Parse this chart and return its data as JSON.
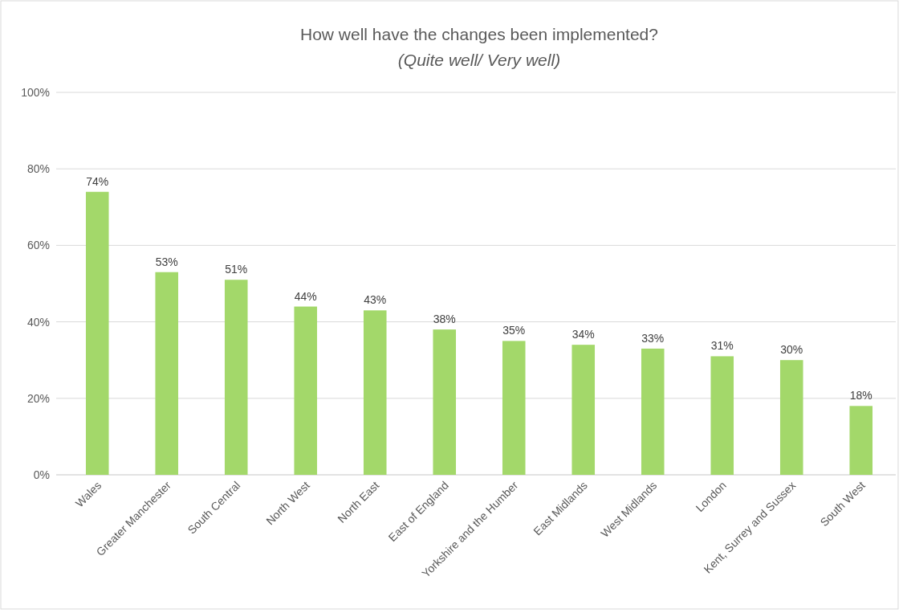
{
  "chart_data": {
    "type": "bar",
    "title": "How well have the changes been implemented?",
    "subtitle": "(Quite well/ Very well)",
    "categories": [
      "Wales",
      "Greater Manchester",
      "South Central",
      "North West",
      "North East",
      "East of England",
      "Yorkshire and the Humber",
      "East Midlands",
      "West Midlands",
      "London",
      "Kent, Surrey and Sussex",
      "South West"
    ],
    "values": [
      74,
      53,
      51,
      44,
      43,
      38,
      35,
      34,
      33,
      31,
      30,
      18
    ],
    "value_labels": [
      "74%",
      "53%",
      "51%",
      "44%",
      "43%",
      "38%",
      "35%",
      "34%",
      "33%",
      "31%",
      "30%",
      "18%"
    ],
    "color": "#a3d86a",
    "ylim": [
      0,
      100
    ],
    "yticks": [
      {
        "value": 0,
        "label": "0%"
      },
      {
        "value": 20,
        "label": "20%"
      },
      {
        "value": 40,
        "label": "40%"
      },
      {
        "value": 60,
        "label": "60%"
      },
      {
        "value": 80,
        "label": "80%"
      },
      {
        "value": 100,
        "label": "100%"
      }
    ],
    "grid": "y"
  }
}
